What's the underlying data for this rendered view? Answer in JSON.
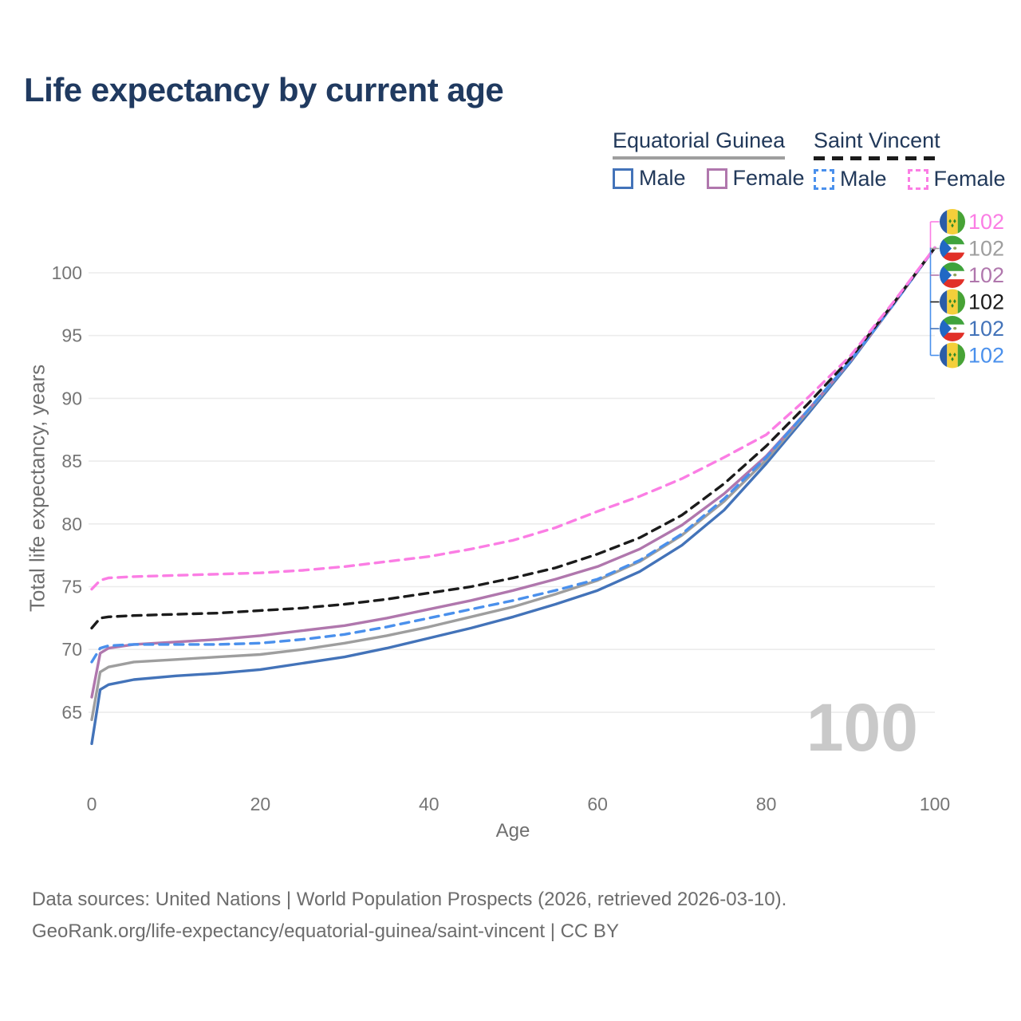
{
  "title": "Life expectancy by current age",
  "legend": {
    "groups": [
      {
        "label": "Equatorial Guinea",
        "items": [
          {
            "label": "Male"
          },
          {
            "label": "Female"
          }
        ]
      },
      {
        "label": "Saint Vincent",
        "items": [
          {
            "label": "Male"
          },
          {
            "label": "Female"
          }
        ]
      }
    ]
  },
  "chart_data": {
    "type": "line",
    "title": "Life expectancy by current age",
    "xlabel": "Age",
    "ylabel": "Total life expectancy, years",
    "xticks": [
      0,
      20,
      40,
      60,
      80,
      100
    ],
    "yticks": [
      65,
      70,
      75,
      80,
      85,
      90,
      95,
      100
    ],
    "xlim": [
      0,
      100
    ],
    "ylim": [
      62,
      104
    ],
    "grid": "horizontal",
    "legend_position": "top-right",
    "watermark": "100",
    "x": [
      0,
      1,
      2,
      5,
      10,
      15,
      20,
      25,
      30,
      35,
      40,
      45,
      50,
      55,
      60,
      65,
      70,
      75,
      80,
      85,
      90,
      95,
      100
    ],
    "series": [
      {
        "id": "eg-male",
        "name": "Equatorial Guinea Male",
        "country": "Equatorial Guinea",
        "sex": "Male",
        "color": "#4373B9",
        "dash": "solid",
        "flag": "gq",
        "values": [
          62.5,
          66.8,
          67.2,
          67.6,
          67.9,
          68.1,
          68.4,
          68.9,
          69.4,
          70.1,
          70.9,
          71.7,
          72.6,
          73.6,
          74.7,
          76.2,
          78.3,
          81.1,
          84.8,
          88.8,
          92.9,
          97.4,
          102
        ]
      },
      {
        "id": "eg-all",
        "name": "Equatorial Guinea",
        "country": "Equatorial Guinea",
        "sex": "All",
        "color": "#9E9E9E",
        "dash": "solid",
        "flag": "gq",
        "values": [
          64.4,
          68.2,
          68.6,
          69.0,
          69.2,
          69.4,
          69.6,
          70.0,
          70.5,
          71.1,
          71.8,
          72.6,
          73.4,
          74.4,
          75.5,
          77.0,
          79.1,
          81.8,
          85.1,
          89.0,
          93.0,
          97.4,
          102
        ]
      },
      {
        "id": "eg-female",
        "name": "Equatorial Guinea Female",
        "country": "Equatorial Guinea",
        "sex": "Female",
        "color": "#B077AD",
        "dash": "solid",
        "flag": "gq",
        "values": [
          66.2,
          69.7,
          70.1,
          70.4,
          70.6,
          70.8,
          71.1,
          71.5,
          71.9,
          72.5,
          73.2,
          73.9,
          74.7,
          75.6,
          76.6,
          78.0,
          79.9,
          82.4,
          85.4,
          89.1,
          93.0,
          97.4,
          102
        ]
      },
      {
        "id": "sv-male",
        "name": "Saint Vincent Male",
        "country": "Saint Vincent",
        "sex": "Male",
        "color": "#4A90EC",
        "dash": "dashed",
        "flag": "sv",
        "values": [
          69.0,
          70.1,
          70.3,
          70.4,
          70.4,
          70.4,
          70.5,
          70.8,
          71.2,
          71.8,
          72.5,
          73.2,
          73.9,
          74.7,
          75.6,
          77.1,
          79.2,
          82.0,
          85.3,
          89.1,
          93.0,
          97.4,
          102
        ]
      },
      {
        "id": "sv-all",
        "name": "Saint Vincent",
        "country": "Saint Vincent",
        "sex": "All",
        "color": "#1B1B1B",
        "dash": "dashed",
        "flag": "sv",
        "values": [
          71.7,
          72.5,
          72.6,
          72.7,
          72.8,
          72.9,
          73.1,
          73.3,
          73.6,
          74.0,
          74.5,
          75.0,
          75.7,
          76.5,
          77.6,
          78.9,
          80.7,
          83.2,
          86.2,
          89.6,
          93.2,
          97.5,
          102
        ]
      },
      {
        "id": "sv-female",
        "name": "Saint Vincent Female",
        "country": "Saint Vincent",
        "sex": "Female",
        "color": "#FB7DE4",
        "dash": "dashed",
        "flag": "sv",
        "values": [
          74.8,
          75.5,
          75.7,
          75.8,
          75.9,
          76.0,
          76.1,
          76.3,
          76.6,
          77.0,
          77.4,
          78.0,
          78.7,
          79.7,
          81.0,
          82.2,
          83.6,
          85.3,
          87.1,
          90.1,
          93.4,
          97.6,
          102
        ]
      }
    ],
    "end_labels": [
      {
        "text": "102",
        "flag": "sv",
        "series": "sv-female",
        "color": "#FB7DE4"
      },
      {
        "text": "102",
        "flag": "gq",
        "series": "eg-all",
        "color": "#9E9E9E"
      },
      {
        "text": "102",
        "flag": "gq",
        "series": "eg-female",
        "color": "#B077AD"
      },
      {
        "text": "102",
        "flag": "sv",
        "series": "sv-all",
        "color": "#1B1B1B"
      },
      {
        "text": "102",
        "flag": "gq",
        "series": "eg-male",
        "color": "#4373B9"
      },
      {
        "text": "102",
        "flag": "sv",
        "series": "sv-male",
        "color": "#4A90EC"
      }
    ]
  },
  "footer": {
    "line1": "Data sources: United Nations | World Population Prospects (2026, retrieved 2026-03-10).",
    "line2": "GeoRank.org/life-expectancy/equatorial-guinea/saint-vincent | CC BY"
  }
}
